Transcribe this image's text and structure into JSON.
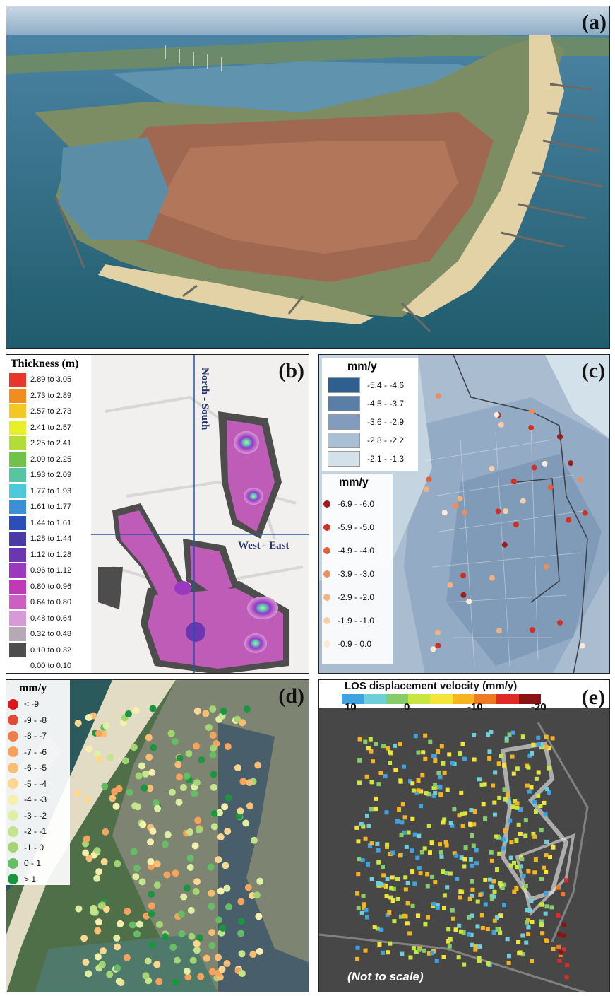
{
  "panels": {
    "a": {
      "label": "(a)"
    },
    "b": {
      "label": "(b)",
      "legend_title": "Thickness (m)",
      "axis_ns": "North - South",
      "axis_we": "West - East",
      "classes": [
        {
          "range": "2.89 to 3.05",
          "color": "#e8362a"
        },
        {
          "range": "2.73 to 2.89",
          "color": "#f28c1e"
        },
        {
          "range": "2.57 to 2.73",
          "color": "#f4c824"
        },
        {
          "range": "2.41 to 2.57",
          "color": "#e6ef2a"
        },
        {
          "range": "2.25 to 2.41",
          "color": "#b3dc3a"
        },
        {
          "range": "2.09 to 2.25",
          "color": "#70c24a"
        },
        {
          "range": "1.93 to 2.09",
          "color": "#58c5a2"
        },
        {
          "range": "1.77 to 1.93",
          "color": "#4ec8da"
        },
        {
          "range": "1.61 to 1.77",
          "color": "#3a8fd6"
        },
        {
          "range": "1.44 to 1.61",
          "color": "#2b4eb8"
        },
        {
          "range": "1.28 to 1.44",
          "color": "#4a3aa6"
        },
        {
          "range": "1.12 to 1.28",
          "color": "#6a36b2"
        },
        {
          "range": "0.96 to 1.12",
          "color": "#9b38c0"
        },
        {
          "range": "0.80 to 0.96",
          "color": "#c03ab8"
        },
        {
          "range": "0.64 to 0.80",
          "color": "#cc5ec4"
        },
        {
          "range": "0.48 to 0.64",
          "color": "#d89ad6"
        },
        {
          "range": "0.32 to 0.48",
          "color": "#b6a9b6"
        },
        {
          "range": "0.10 to 0.32",
          "color": "#4d4d4d"
        },
        {
          "range": "0.00 to 0.10",
          "color": "#ffffff"
        }
      ]
    },
    "c": {
      "label": "(c)",
      "area_title": "mm/y",
      "area_classes": [
        {
          "range": "-5.4 - -4.6",
          "color": "#2f5f8e"
        },
        {
          "range": "-4.5 - -3.7",
          "color": "#5a7ea5"
        },
        {
          "range": "-3.6 - -2.9",
          "color": "#819cbd"
        },
        {
          "range": "-2.8 - -2.2",
          "color": "#a9bfd4"
        },
        {
          "range": "-2.1 - -1.3",
          "color": "#d3e1ea"
        }
      ],
      "point_title": "mm/y",
      "point_classes": [
        {
          "range": "-6.9 - -6.0",
          "color": "#a11c1c"
        },
        {
          "range": "-5.9 - -5.0",
          "color": "#cf2f25"
        },
        {
          "range": "-4.9 - -4.0",
          "color": "#e0603a"
        },
        {
          "range": "-3.9 - -3.0",
          "color": "#ec8d5c"
        },
        {
          "range": "-2.9 - -2.0",
          "color": "#f3b182"
        },
        {
          "range": "-1.9 - -1.0",
          "color": "#f8cfa8"
        },
        {
          "range": "-0.9 - 0.0",
          "color": "#fce9d6"
        }
      ]
    },
    "d": {
      "label": "(d)",
      "legend_title": "mm/y",
      "classes": [
        {
          "range": "< -9",
          "color": "#d7191c"
        },
        {
          "range": "-9 - -8",
          "color": "#e34a33"
        },
        {
          "range": "-8 - -7",
          "color": "#f07c4a"
        },
        {
          "range": "-7 - -6",
          "color": "#f7a35c"
        },
        {
          "range": "-6 - -5",
          "color": "#fbbd74"
        },
        {
          "range": "-5 - -4",
          "color": "#fdd690"
        },
        {
          "range": "-4 - -3",
          "color": "#f6efad"
        },
        {
          "range": "-3 - -2",
          "color": "#dff0a6"
        },
        {
          "range": "-2 - -1",
          "color": "#c4e58c"
        },
        {
          "range": "-1 - 0",
          "color": "#a3d672"
        },
        {
          "range": "0 - 1",
          "color": "#66bd63"
        },
        {
          "range": "> 1",
          "color": "#1a9641"
        }
      ]
    },
    "e": {
      "label": "(e)",
      "colorbar_title": "LOS displacement velocity (mm/y)",
      "colorbar_colors": [
        "#3fa3e0",
        "#6fcfd8",
        "#86cc6a",
        "#c9e640",
        "#f5e43a",
        "#f5b520",
        "#f07a22",
        "#e02a2a",
        "#8b1212"
      ],
      "ticks": [
        "10",
        "0",
        "-10",
        "-20"
      ],
      "note": "(Not to scale)"
    }
  }
}
